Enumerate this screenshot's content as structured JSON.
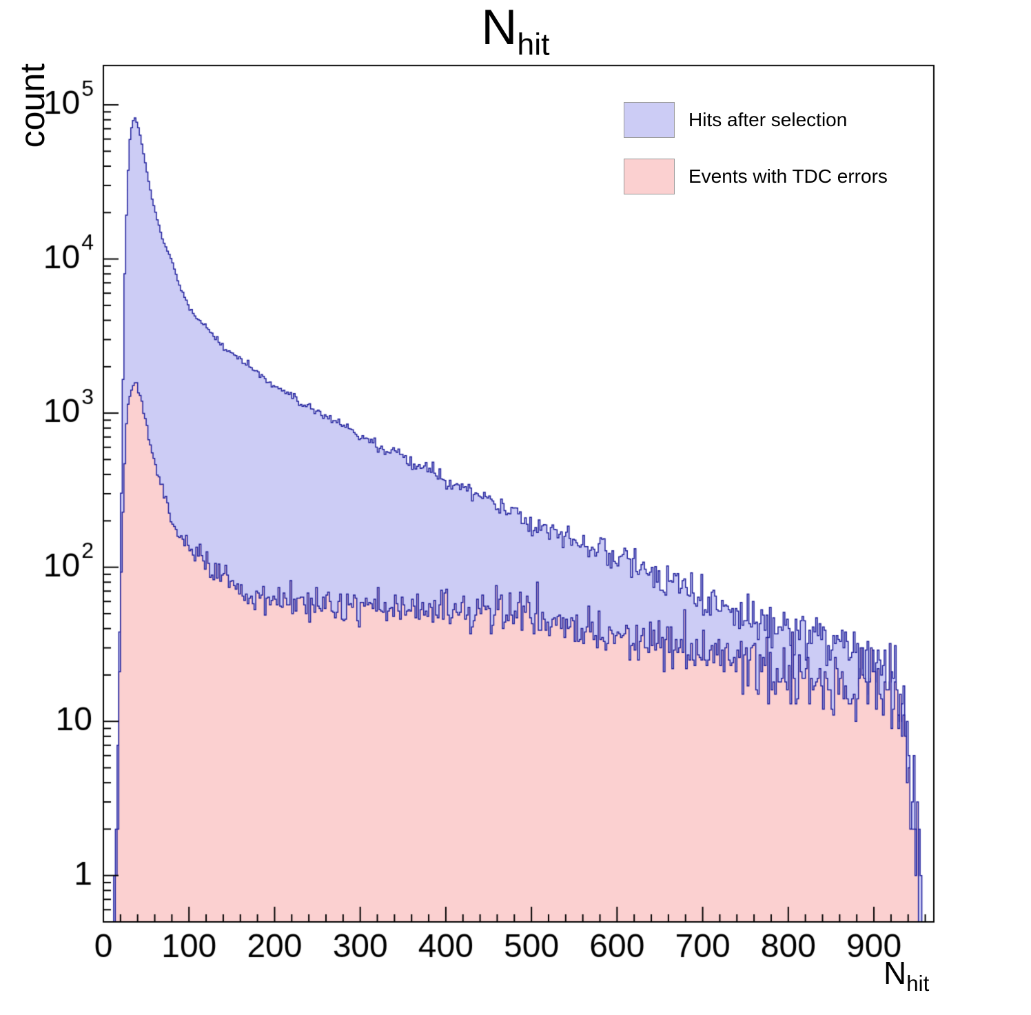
{
  "title": {
    "main": "N",
    "sub": "hit"
  },
  "axes": {
    "y_label": "count",
    "x_label_main": "N",
    "x_label_sub": "hit"
  },
  "chart_data": {
    "type": "area",
    "subtype": "step-histogram-log",
    "title": "N_hit",
    "xlabel": "N_hit",
    "ylabel": "count",
    "x_range": [
      0,
      970
    ],
    "y_range": [
      0.5,
      180000
    ],
    "y_scale": "log",
    "grid": false,
    "legend_position": "top-right",
    "bin_width": 2,
    "bin_start": 8,
    "bin_end": 964,
    "x_ticks_major": [
      0,
      100,
      200,
      300,
      400,
      500,
      600,
      700,
      800,
      900
    ],
    "x_minor_step": 20,
    "y_ticks": [
      {
        "base": "1",
        "exp": "",
        "value": 1
      },
      {
        "base": "10",
        "exp": "",
        "value": 10
      },
      {
        "base": "10",
        "exp": "2",
        "value": 100
      },
      {
        "base": "10",
        "exp": "3",
        "value": 1000
      },
      {
        "base": "10",
        "exp": "4",
        "value": 10000
      },
      {
        "base": "10",
        "exp": "5",
        "value": 100000
      }
    ],
    "noise": {
      "seed_blue": 1337,
      "seed_pink": 4242,
      "scale": 1.15,
      "max_sigma": 0.5
    },
    "series": [
      {
        "name": "Hits after selection",
        "fill": "#ccccf5",
        "line": "#1f1f9c",
        "anchors": [
          [
            13,
            0.7
          ],
          [
            16,
            3
          ],
          [
            19,
            40
          ],
          [
            22,
            800
          ],
          [
            25,
            8000
          ],
          [
            28,
            30000
          ],
          [
            31,
            60000
          ],
          [
            34,
            78000
          ],
          [
            37,
            82000
          ],
          [
            40,
            76000
          ],
          [
            44,
            60000
          ],
          [
            48,
            45000
          ],
          [
            52,
            34000
          ],
          [
            56,
            26000
          ],
          [
            60,
            21000
          ],
          [
            70,
            13000
          ],
          [
            80,
            9800
          ],
          [
            90,
            6500
          ],
          [
            100,
            4900
          ],
          [
            110,
            4100
          ],
          [
            120,
            3600
          ],
          [
            130,
            3100
          ],
          [
            140,
            2700
          ],
          [
            150,
            2450
          ],
          [
            160,
            2250
          ],
          [
            170,
            2050
          ],
          [
            180,
            1850
          ],
          [
            200,
            1500
          ],
          [
            220,
            1280
          ],
          [
            240,
            1100
          ],
          [
            260,
            950
          ],
          [
            280,
            830
          ],
          [
            300,
            720
          ],
          [
            320,
            620
          ],
          [
            340,
            545
          ],
          [
            360,
            480
          ],
          [
            380,
            420
          ],
          [
            400,
            365
          ],
          [
            420,
            325
          ],
          [
            440,
            290
          ],
          [
            460,
            255
          ],
          [
            480,
            228
          ],
          [
            500,
            200
          ],
          [
            520,
            180
          ],
          [
            540,
            160
          ],
          [
            560,
            143
          ],
          [
            580,
            128
          ],
          [
            600,
            115
          ],
          [
            620,
            103
          ],
          [
            640,
            93
          ],
          [
            660,
            84
          ],
          [
            680,
            76
          ],
          [
            700,
            68
          ],
          [
            720,
            61
          ],
          [
            740,
            55
          ],
          [
            760,
            49
          ],
          [
            780,
            45
          ],
          [
            800,
            41
          ],
          [
            820,
            37
          ],
          [
            840,
            34
          ],
          [
            860,
            31
          ],
          [
            880,
            28
          ],
          [
            900,
            26
          ],
          [
            915,
            24
          ],
          [
            925,
            19
          ],
          [
            935,
            10
          ],
          [
            945,
            4
          ],
          [
            952,
            1.5
          ],
          [
            958,
            0.6
          ]
        ]
      },
      {
        "name": "Events with TDC errors",
        "fill": "#fbd0d0",
        "line": "#1f1f9c",
        "anchors": [
          [
            15,
            0.6
          ],
          [
            18,
            8
          ],
          [
            21,
            80
          ],
          [
            24,
            400
          ],
          [
            27,
            900
          ],
          [
            30,
            1250
          ],
          [
            34,
            1480
          ],
          [
            38,
            1540
          ],
          [
            42,
            1350
          ],
          [
            46,
            1050
          ],
          [
            50,
            820
          ],
          [
            55,
            620
          ],
          [
            60,
            470
          ],
          [
            65,
            370
          ],
          [
            70,
            300
          ],
          [
            80,
            215
          ],
          [
            90,
            168
          ],
          [
            100,
            140
          ],
          [
            110,
            120
          ],
          [
            120,
            105
          ],
          [
            130,
            95
          ],
          [
            140,
            87
          ],
          [
            150,
            80
          ],
          [
            160,
            74
          ],
          [
            170,
            70
          ],
          [
            180,
            66
          ],
          [
            190,
            63
          ],
          [
            200,
            61
          ],
          [
            220,
            59
          ],
          [
            240,
            58
          ],
          [
            260,
            57
          ],
          [
            280,
            57
          ],
          [
            300,
            56
          ],
          [
            320,
            55
          ],
          [
            340,
            55
          ],
          [
            360,
            54
          ],
          [
            380,
            54
          ],
          [
            400,
            53
          ],
          [
            420,
            52
          ],
          [
            440,
            51
          ],
          [
            460,
            50
          ],
          [
            480,
            48
          ],
          [
            500,
            46
          ],
          [
            520,
            44
          ],
          [
            540,
            42
          ],
          [
            560,
            40
          ],
          [
            580,
            38
          ],
          [
            600,
            36
          ],
          [
            620,
            34
          ],
          [
            640,
            33
          ],
          [
            660,
            31
          ],
          [
            680,
            30
          ],
          [
            700,
            28
          ],
          [
            720,
            27
          ],
          [
            740,
            25
          ],
          [
            760,
            24
          ],
          [
            780,
            22
          ],
          [
            800,
            21
          ],
          [
            820,
            20
          ],
          [
            840,
            19
          ],
          [
            860,
            18
          ],
          [
            880,
            17
          ],
          [
            900,
            16
          ],
          [
            915,
            15
          ],
          [
            925,
            11
          ],
          [
            935,
            6
          ],
          [
            945,
            2.5
          ],
          [
            952,
            0.9
          ],
          [
            958,
            0.4
          ]
        ]
      }
    ]
  }
}
